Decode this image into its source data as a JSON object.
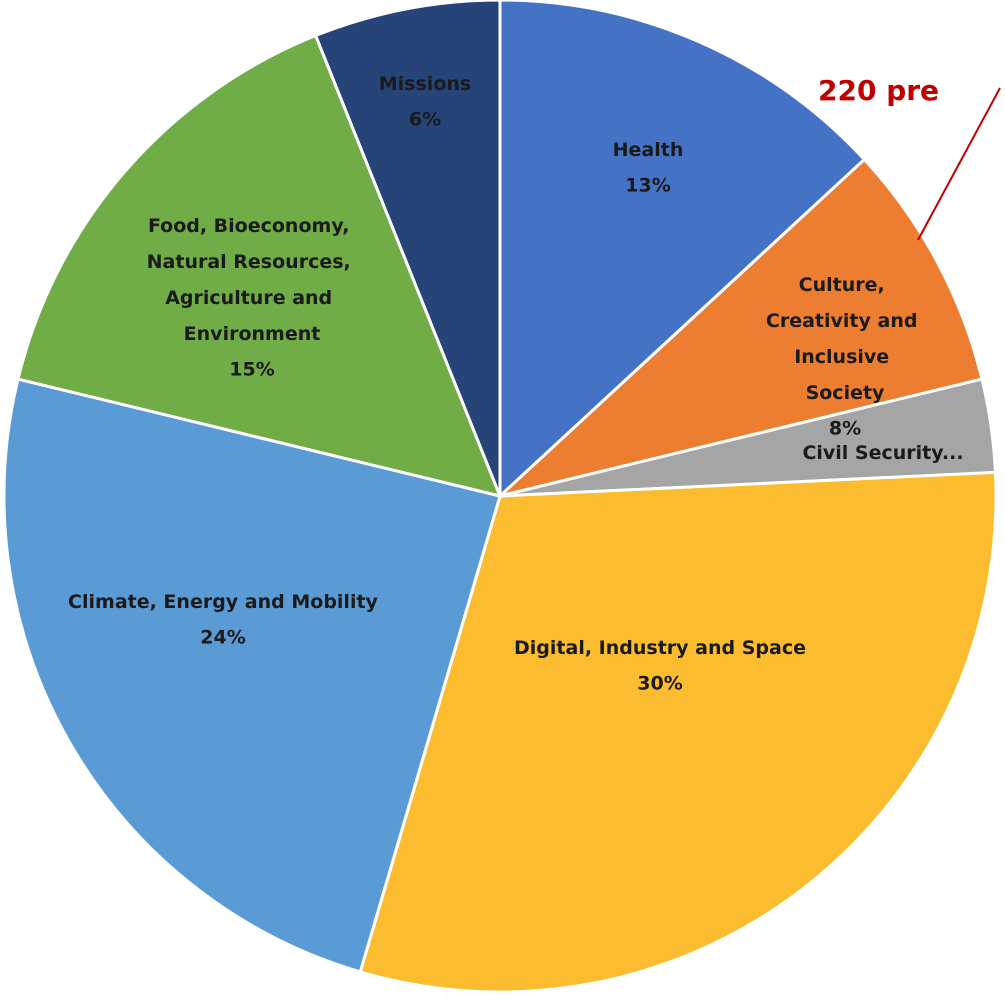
{
  "chart_data": {
    "type": "pie",
    "categories": [
      "Health",
      "Culture, Creativity and Inclusive Society",
      "Civil Security...",
      "Digital, Industry and Space",
      "Climate, Energy and Mobility",
      "Food, Bioeconomy, Natural Resources, Agriculture and Environment",
      "Missions"
    ],
    "values": [
      13,
      8,
      3,
      30,
      24,
      15,
      6
    ],
    "value_labels": [
      "13%",
      "8%",
      null,
      "30%",
      "24%",
      "15%",
      "6%"
    ],
    "colors": [
      "#4472c4",
      "#ed7d31",
      "#a5a5a5",
      "#fbbd2f",
      "#5b9bd5",
      "#70ad47",
      "#264478"
    ],
    "annotation": "220 pre"
  }
}
